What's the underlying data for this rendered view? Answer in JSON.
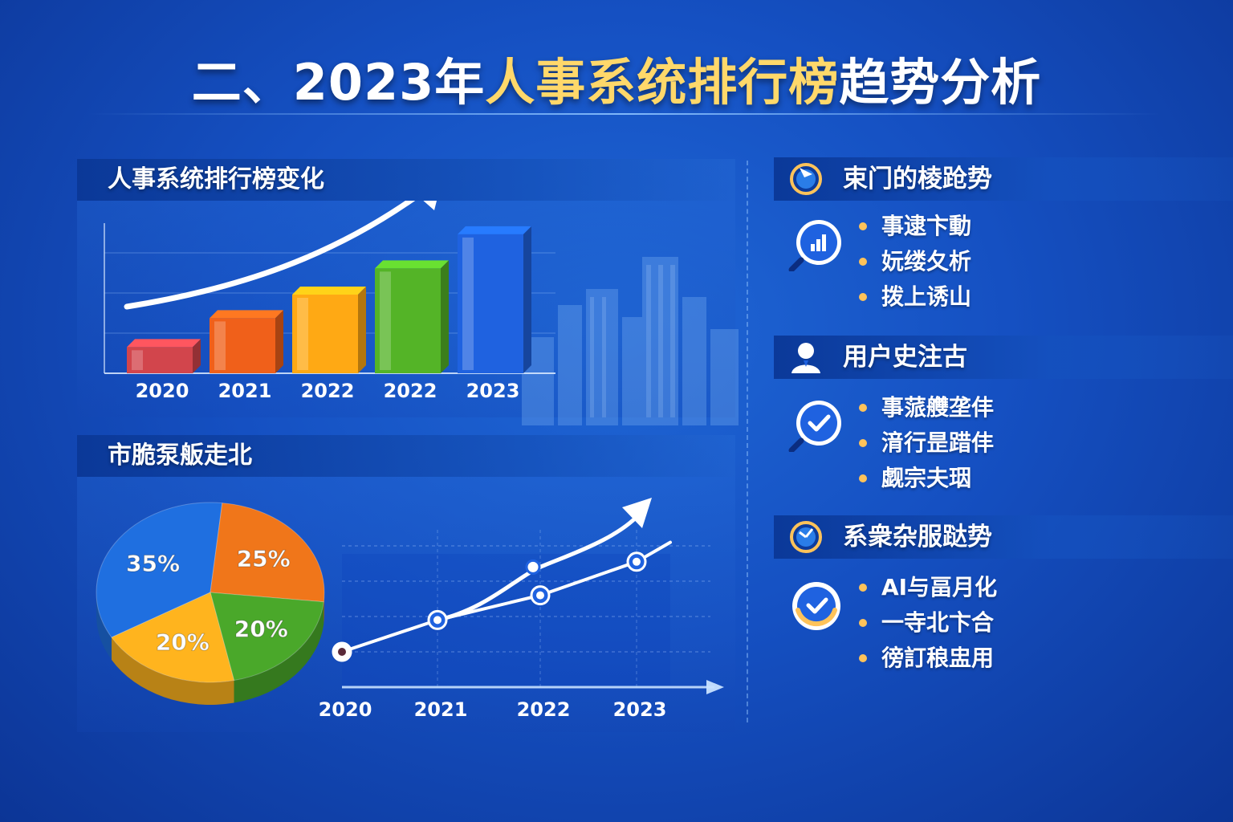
{
  "title": {
    "part1": "二、2023年",
    "part2": "人事系统排行榜",
    "part3": "趋势分析"
  },
  "panels": {
    "bar_title": "人事系统排行榜变化",
    "market_title": "市脆泵舨走北"
  },
  "sidebar": {
    "sections": [
      {
        "heading": "束门的棱跄势",
        "icon": "compass-icon",
        "items": [
          "事逮卞動",
          "妧缕夂析",
          "拨上诱山"
        ]
      },
      {
        "heading": "用户史注古",
        "icon": "user-icon",
        "items": [
          "事蒎艭垄仹",
          "湇行昰踖仹",
          "觑宗夫珚"
        ]
      },
      {
        "heading": "系衆杂服跶势",
        "icon": "gauge-icon",
        "items": [
          "AI与畐月化",
          "一寺北卞合",
          "徬訂稂盅用"
        ]
      }
    ]
  },
  "colors": {
    "bar_2020": "#d2454c",
    "bar_2021": "#f0601a",
    "bar_2022a": "#ffa914",
    "bar_2022b": "#54b427",
    "bar_2023": "#1f62e0",
    "pie_blue": "#1f6fe0",
    "pie_orange": "#f0761a",
    "pie_green": "#4aa82a",
    "pie_yellow": "#ffb41e",
    "bullet": "#ffc35a",
    "highlight_text": "#ffd86a"
  },
  "chart_data": [
    {
      "type": "bar",
      "categories": [
        "2020",
        "2021",
        "2022",
        "2022",
        "2023"
      ],
      "values": [
        1,
        2.1,
        3,
        4,
        5.3
      ],
      "ylim": [
        0,
        6
      ],
      "grid": true,
      "trend_arrow": "up"
    },
    {
      "type": "pie",
      "labels": [
        "35%",
        "25%",
        "20%",
        "20%"
      ],
      "values": [
        35,
        25,
        20,
        20
      ],
      "colors": [
        "#1f6fe0",
        "#f0761a",
        "#4aa82a",
        "#ffb41e"
      ]
    },
    {
      "type": "line",
      "x": [
        "2020",
        "2021",
        "2022",
        "2023"
      ],
      "series": [
        {
          "values": [
            1.0,
            1.9,
            2.6,
            3.55
          ]
        },
        {
          "values": [
            null,
            null,
            3.4,
            4.4
          ]
        }
      ],
      "ylim": [
        0,
        5
      ],
      "grid": true,
      "trend_arrow": "up"
    }
  ]
}
